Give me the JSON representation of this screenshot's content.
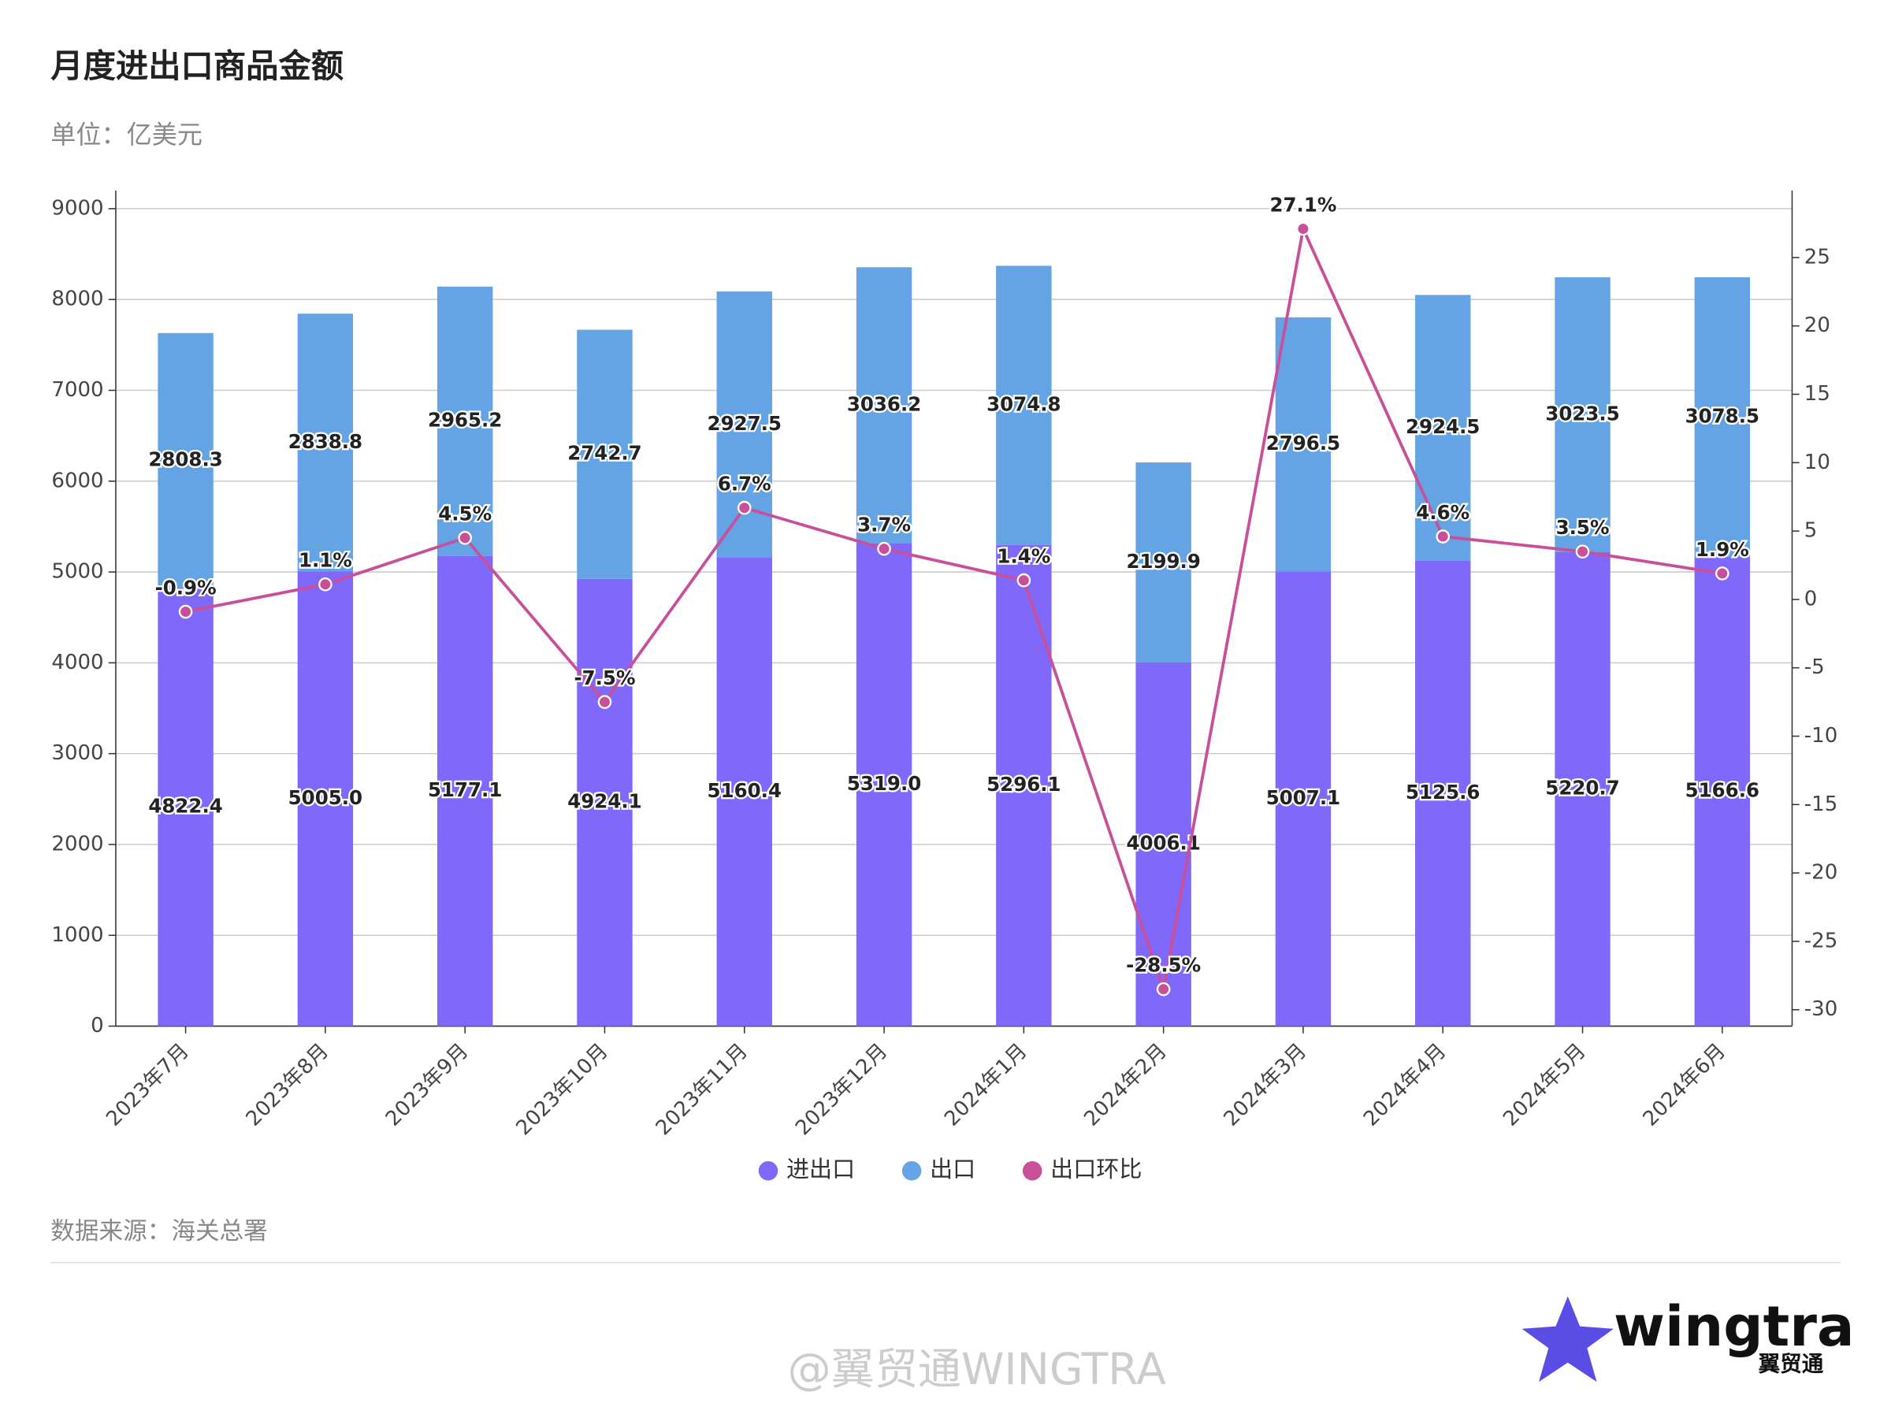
{
  "chart_data": {
    "type": "bar_line",
    "title": "月度进出口商品金额",
    "subtitle": "单位：亿美元",
    "source": "数据来源：海关总署",
    "categories": [
      "2023年7月",
      "2023年8月",
      "2023年9月",
      "2023年10月",
      "2023年11月",
      "2023年12月",
      "2024年1月",
      "2024年2月",
      "2024年3月",
      "2024年4月",
      "2024年5月",
      "2024年6月"
    ],
    "series": [
      {
        "name": "进出口",
        "color": "#8068fb",
        "type": "bar",
        "values": [
          4822.4,
          5005.0,
          5177.1,
          4924.1,
          5160.4,
          5319.0,
          5296.1,
          4006.1,
          5007.1,
          5125.6,
          5220.7,
          5166.6
        ],
        "value_labels": [
          "4822.4",
          "5005.0",
          "5177.1",
          "4924.1",
          "5160.4",
          "5319.0",
          "5296.1",
          "4006.1",
          "5007.1",
          "5125.6",
          "5220.7",
          "5166.6"
        ]
      },
      {
        "name": "出口",
        "color": "#64a4e4",
        "type": "bar",
        "values": [
          2808.3,
          2838.8,
          2965.2,
          2742.7,
          2927.5,
          3036.2,
          3074.8,
          2199.9,
          2796.5,
          2924.5,
          3023.5,
          3078.5
        ]
      },
      {
        "name": "出口环比",
        "color": "#c8509b",
        "type": "line",
        "axis": "y2",
        "values": [
          -0.9,
          1.1,
          4.5,
          -7.5,
          6.7,
          3.7,
          1.4,
          -28.5,
          27.1,
          4.6,
          3.5,
          1.9
        ],
        "value_labels": [
          "-0.9%",
          "1.1%",
          "4.5%",
          "-7.5%",
          "6.7%",
          "3.7%",
          "1.4%",
          "-28.5%",
          "27.1%",
          "4.6%",
          "3.5%",
          "1.9%"
        ]
      }
    ],
    "ylim": [
      0,
      9200
    ],
    "yticks": [
      0,
      1000,
      2000,
      3000,
      4000,
      5000,
      6000,
      7000,
      8000,
      9000
    ],
    "y2lim": [
      -31.2,
      29.9
    ],
    "y2ticks": [
      -30,
      -25,
      -20,
      -15,
      -10,
      -5,
      0,
      5,
      10,
      15,
      20,
      25
    ],
    "grid": true,
    "legend": "bottom"
  },
  "branding": {
    "logo": "wingtra",
    "logo_sub": "翼贸通",
    "watermark": "@翼贸通WINGTRA"
  }
}
